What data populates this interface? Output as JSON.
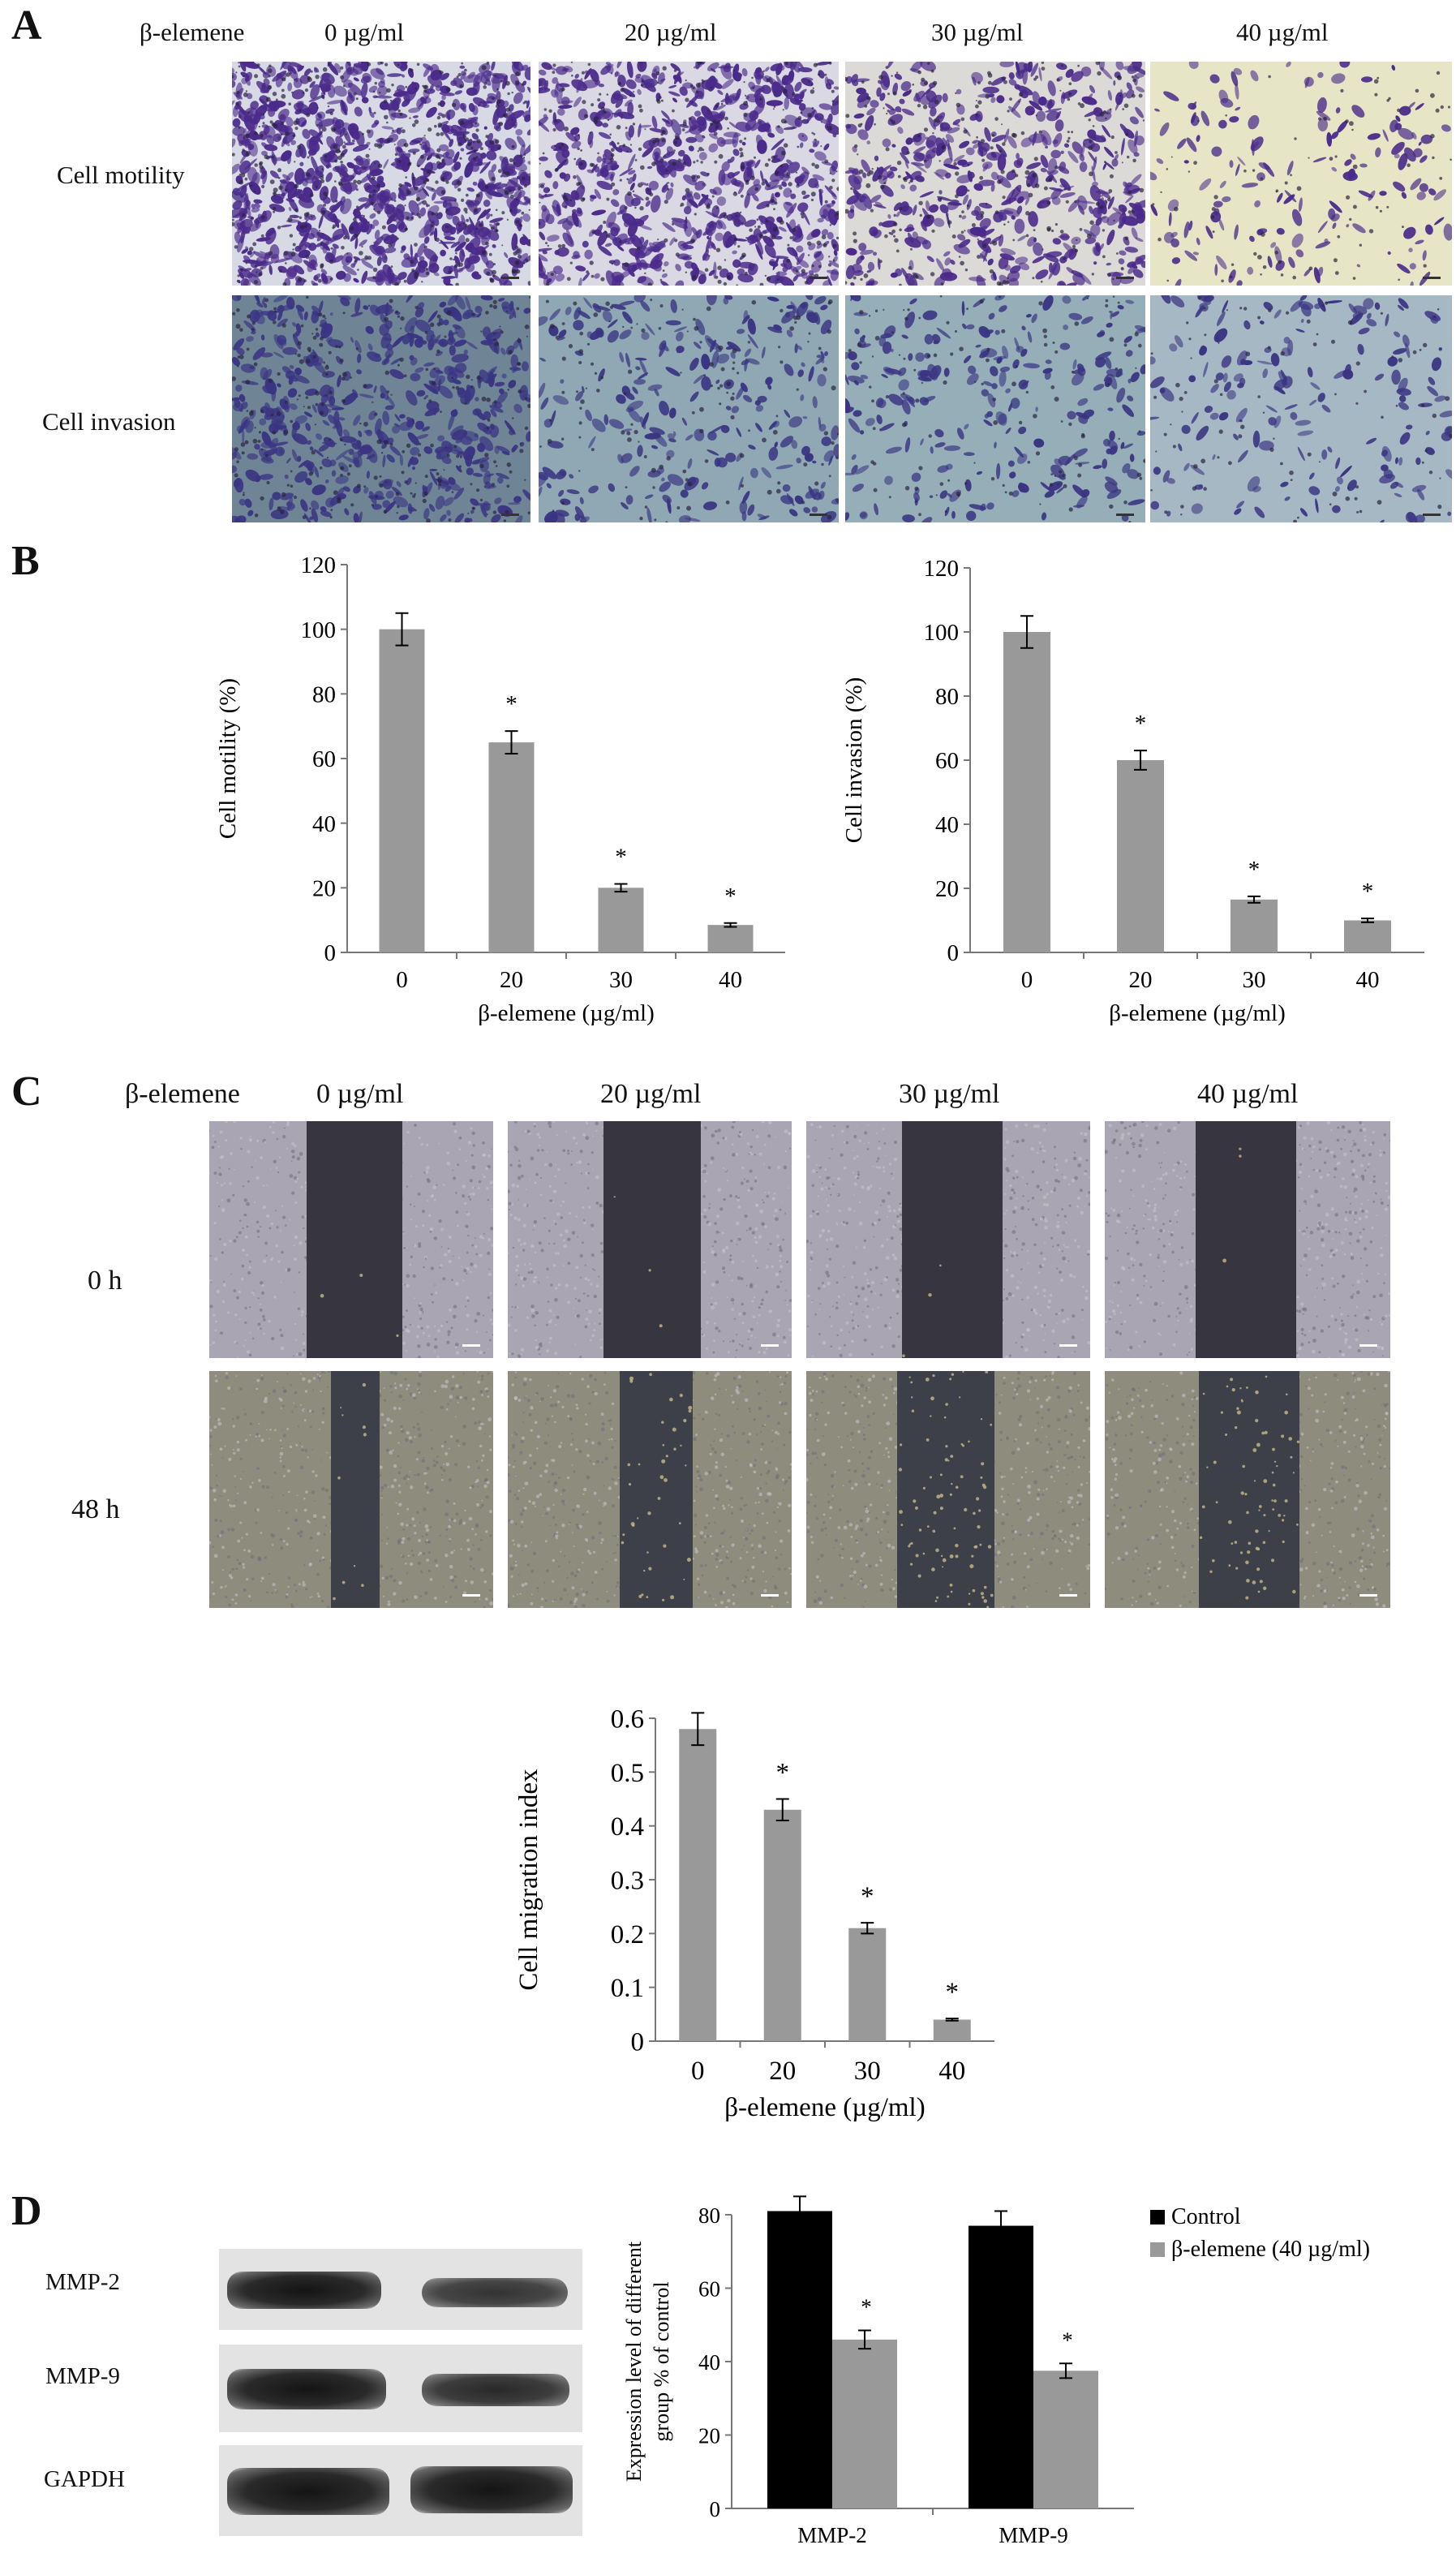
{
  "panelA": {
    "letter": "A",
    "treatment_label": "β-elemene",
    "doses": [
      "0 µg/ml",
      "20 µg/ml",
      "30 µg/ml",
      "40 µg/ml"
    ],
    "rows": [
      "Cell motility",
      "Cell invasion"
    ]
  },
  "panelB": {
    "letter": "B"
  },
  "panelC": {
    "letter": "C",
    "treatment_label": "β-elemene",
    "doses": [
      "0 µg/ml",
      "20 µg/ml",
      "30 µg/ml",
      "40 µg/ml"
    ],
    "rows": [
      "0 h",
      "48 h"
    ]
  },
  "panelD": {
    "letter": "D",
    "blot_labels": [
      "MMP-2",
      "MMP-9",
      "GAPDH"
    ]
  },
  "colors": {
    "bar_gray": "#999999",
    "bar_black": "#000000"
  },
  "chart_data": [
    {
      "id": "motility",
      "type": "bar",
      "categories": [
        "0",
        "20",
        "30",
        "40"
      ],
      "values": [
        100,
        65,
        20,
        8.5
      ],
      "errors": [
        5,
        3.5,
        1.2,
        0.6
      ],
      "significance": [
        "",
        "*",
        "*",
        "*"
      ],
      "xlabel": "β-elemene (µg/ml)",
      "ylabel": "Cell motility (%)",
      "ylim": [
        0,
        120
      ],
      "yticks": [
        0,
        20,
        40,
        60,
        80,
        100,
        120
      ],
      "yticklabels": [
        "0",
        "20",
        "40",
        "60",
        "80",
        "100",
        "120"
      ]
    },
    {
      "id": "invasion",
      "type": "bar",
      "categories": [
        "0",
        "20",
        "30",
        "40"
      ],
      "values": [
        100,
        60,
        16.5,
        10
      ],
      "errors": [
        5,
        3,
        1,
        0.6
      ],
      "significance": [
        "",
        "*",
        "*",
        "*"
      ],
      "xlabel": "β-elemene (µg/ml)",
      "ylabel": "Cell invasion (%)",
      "ylim": [
        0,
        120
      ],
      "yticks": [
        0,
        20,
        40,
        60,
        80,
        100,
        120
      ],
      "yticklabels": [
        "0",
        "20",
        "40",
        "60",
        "80",
        "100",
        "120"
      ]
    },
    {
      "id": "migration",
      "type": "bar",
      "categories": [
        "0",
        "20",
        "30",
        "40"
      ],
      "values": [
        0.58,
        0.43,
        0.21,
        0.04
      ],
      "errors": [
        0.03,
        0.02,
        0.01,
        0.002
      ],
      "significance": [
        "",
        "*",
        "*",
        "*"
      ],
      "xlabel": "β-elemene (µg/ml)",
      "ylabel": "Cell migration index",
      "ylim": [
        0,
        0.6
      ],
      "yticks": [
        0,
        0.1,
        0.2,
        0.3,
        0.4,
        0.5,
        0.6
      ],
      "yticklabels": [
        "0",
        "0.1",
        "0.2",
        "0.3",
        "0.4",
        "0.5",
        "0.6"
      ]
    },
    {
      "id": "expression",
      "type": "bar",
      "categories": [
        "MMP-2",
        "MMP-9"
      ],
      "series": [
        {
          "name": "Control",
          "color": "#000000",
          "values": [
            81,
            77
          ],
          "errors": [
            4,
            4
          ],
          "significance": [
            "",
            ""
          ]
        },
        {
          "name": "β-elemene (40 µg/ml)",
          "color": "#999999",
          "values": [
            46,
            37.5
          ],
          "errors": [
            2.5,
            2
          ],
          "significance": [
            "*",
            "*"
          ]
        }
      ],
      "ylabel_lines": [
        "Expression level of different",
        "group % of control"
      ],
      "ylim": [
        0,
        80
      ],
      "yticks": [
        0,
        20,
        40,
        60,
        80
      ],
      "yticklabels": [
        "0",
        "20",
        "40",
        "60",
        "80"
      ],
      "legend_position": "top-right"
    }
  ]
}
